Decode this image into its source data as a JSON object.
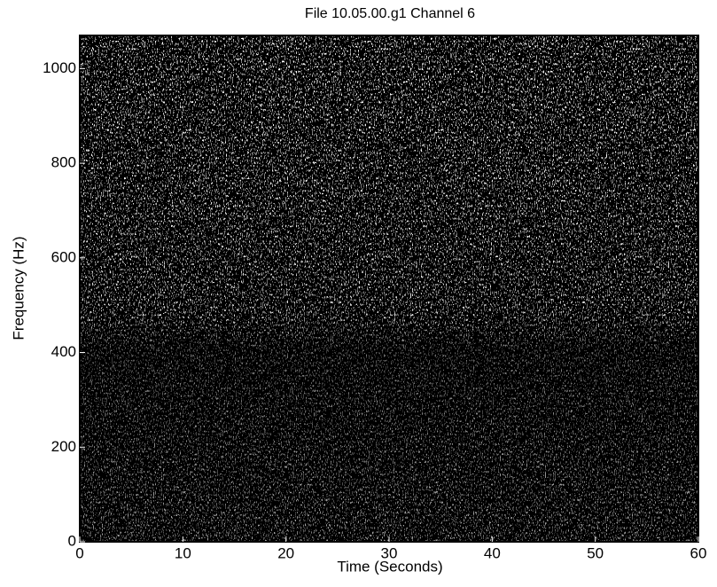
{
  "chart_data": {
    "type": "spectrogram",
    "title": "File 10.05.00.g1 Channel 6",
    "x_label": "Time (Seconds)",
    "y_label": "Frequency (Hz)",
    "xlim": [
      0,
      60
    ],
    "xticks": [
      0,
      10,
      20,
      30,
      40,
      50,
      60
    ],
    "ylim": [
      0,
      1070
    ],
    "yticks": [
      0,
      200,
      400,
      600,
      800,
      1000
    ]
  }
}
